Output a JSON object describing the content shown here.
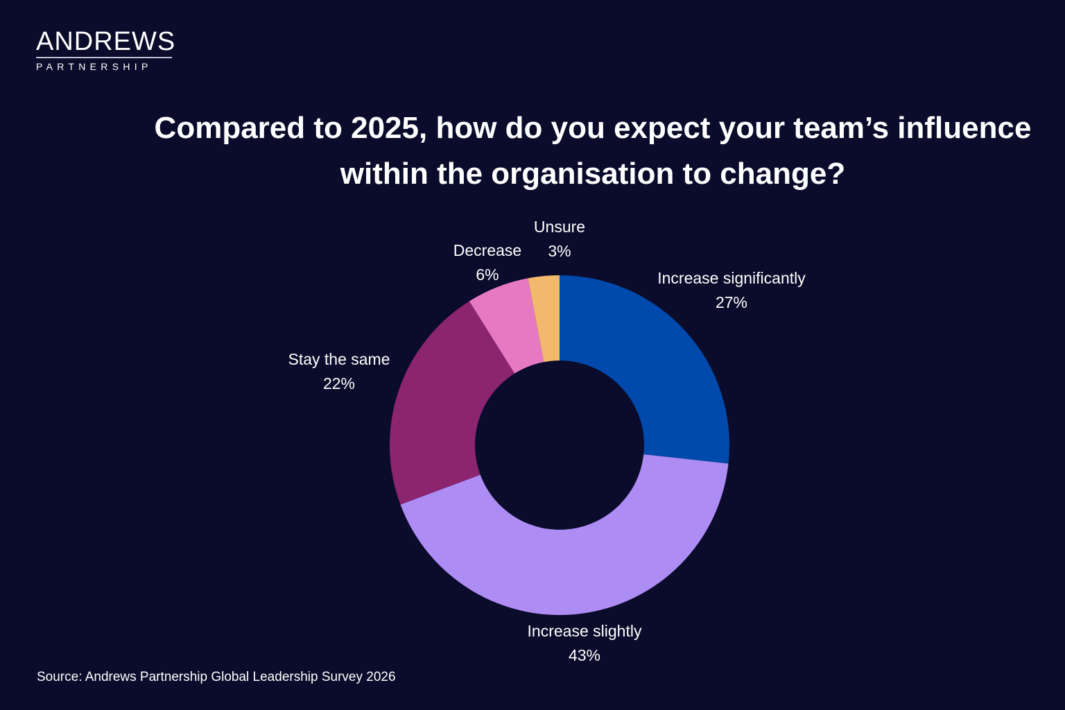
{
  "logo": {
    "main": "ANDREWS",
    "sub": "PARTNERSHIP"
  },
  "chart_data": {
    "type": "donut",
    "title": "Compared to 2025, how do you expect your team’s influence within the organisation to change?",
    "start": "top",
    "direction": "clockwise",
    "slices": [
      {
        "label": "Increase significantly",
        "value": 27,
        "display": "27%",
        "color": "#004aad"
      },
      {
        "label": "Increase slightly",
        "value": 43,
        "display": "43%",
        "color": "#ad8cf3"
      },
      {
        "label": "Stay the same",
        "value": 22,
        "display": "22%",
        "color": "#8c2570"
      },
      {
        "label": "Decrease",
        "value": 6,
        "display": "6%",
        "color": "#e779c2"
      },
      {
        "label": "Unsure",
        "value": 3,
        "display": "3%",
        "color": "#f2b96c"
      }
    ],
    "background": "#0b0b2b"
  },
  "source": "Source: Andrews Partnership Global Leadership Survey 2026"
}
